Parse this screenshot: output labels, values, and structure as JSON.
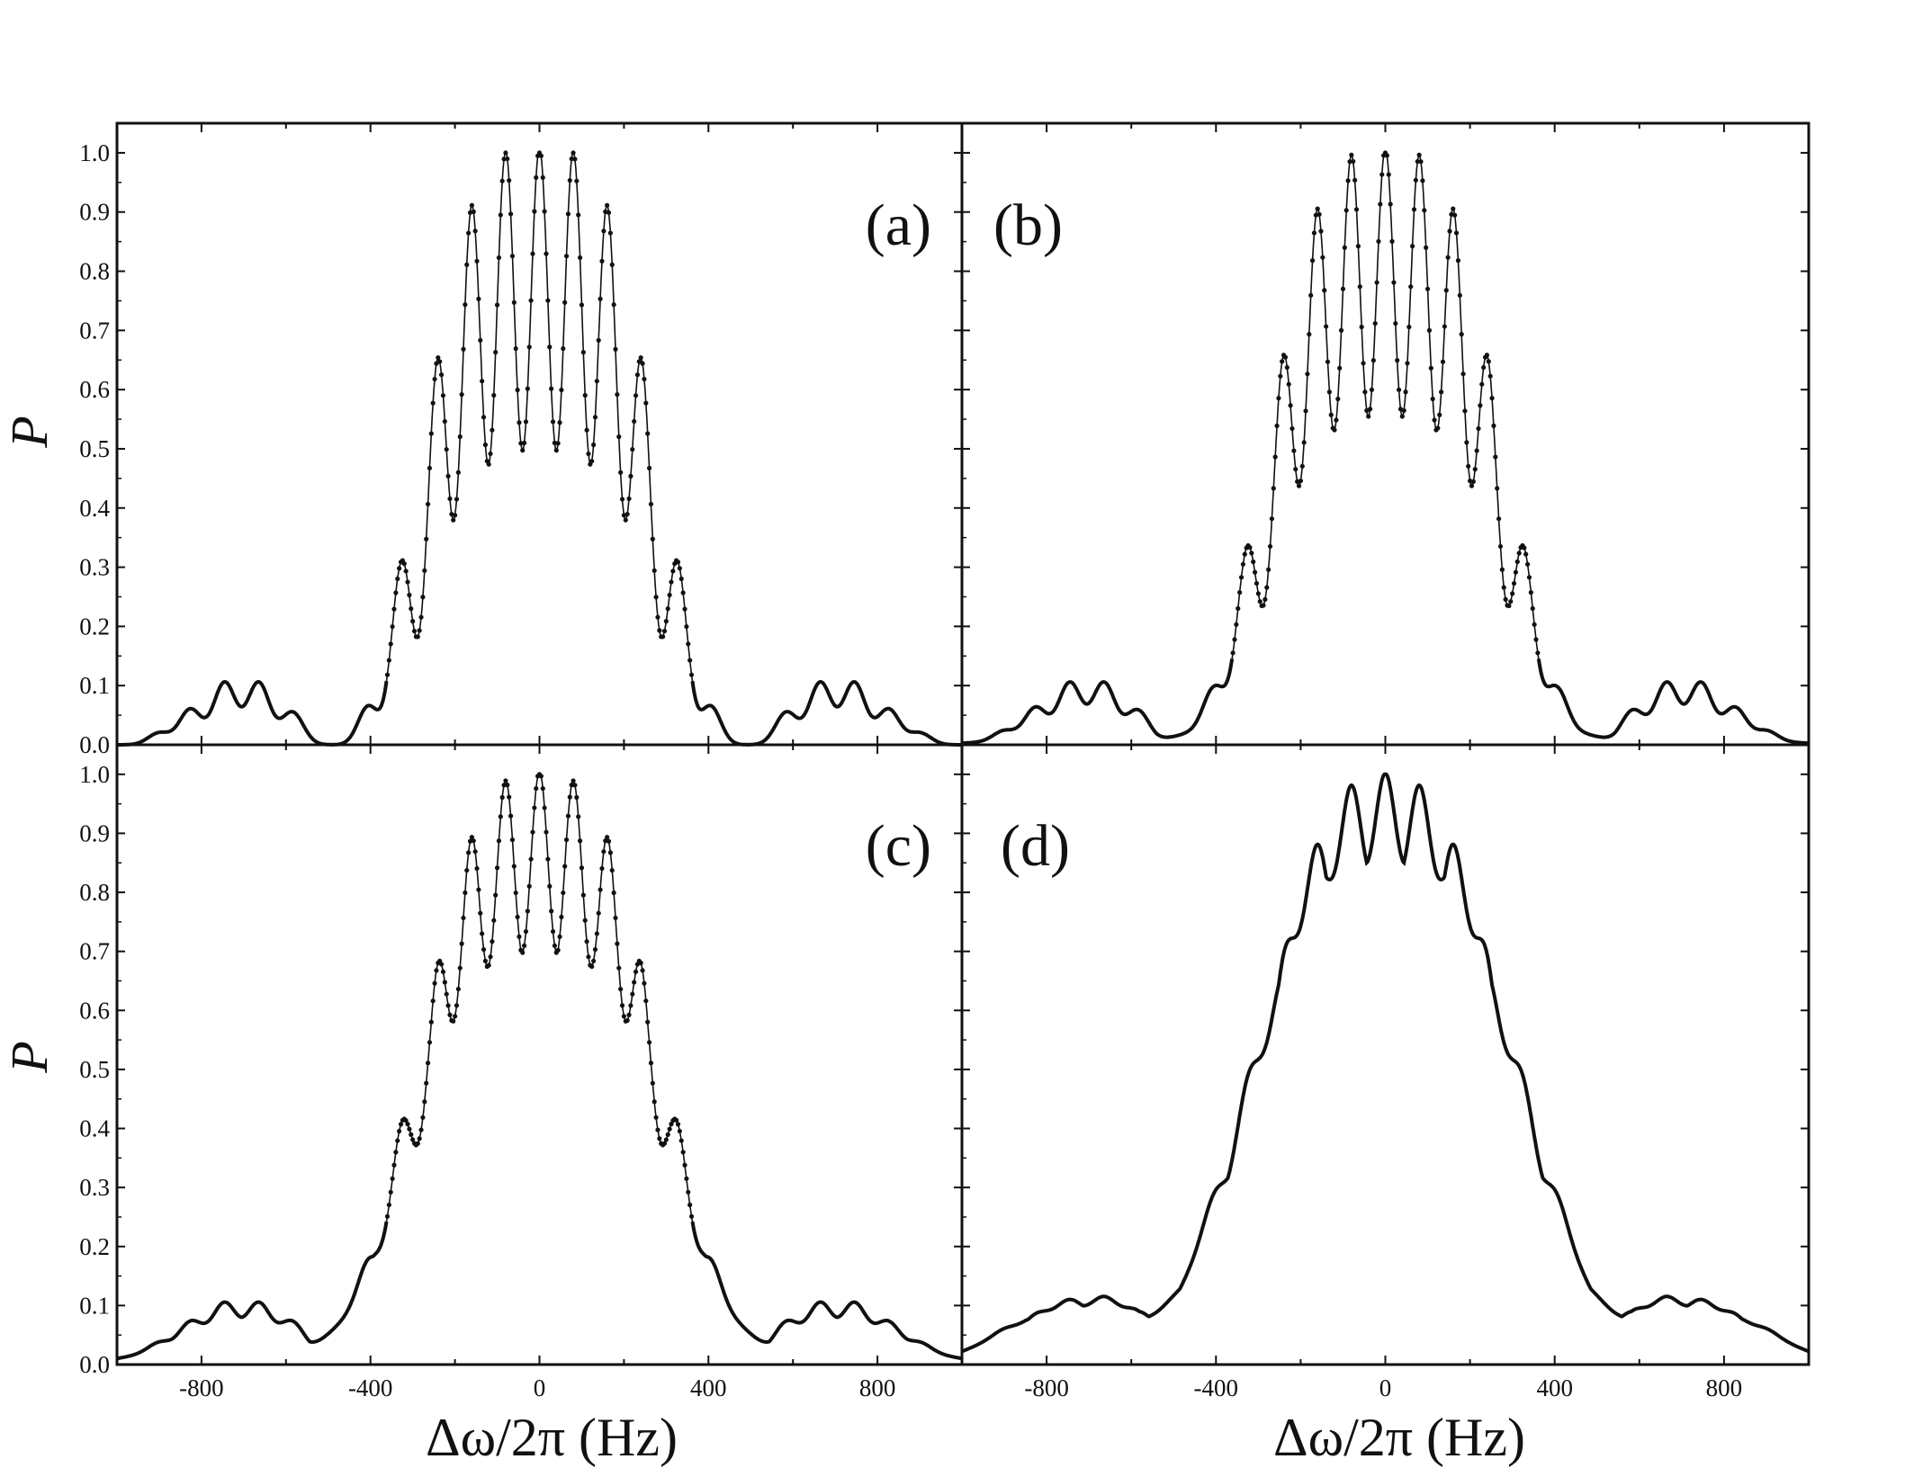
{
  "chart_data": [
    {
      "type": "line",
      "panel_label": "(a)",
      "ylabel": "P",
      "xlabel": "",
      "xlim": [
        -1000,
        1000
      ],
      "ylim": [
        0,
        1.05
      ],
      "x_ticks": [
        "-800",
        "-400",
        "0",
        "400",
        "800"
      ],
      "y_ticks": [
        "0.0",
        "0.1",
        "0.2",
        "0.3",
        "0.4",
        "0.5",
        "0.6",
        "0.7",
        "0.8",
        "0.9",
        "1.0"
      ],
      "peaks": [
        {
          "x": -900,
          "y": 0.02
        },
        {
          "x": -826,
          "y": 0.06
        },
        {
          "x": -745,
          "y": 0.105
        },
        {
          "x": -665,
          "y": 0.105
        },
        {
          "x": -585,
          "y": 0.055
        },
        {
          "x": -405,
          "y": 0.065
        },
        {
          "x": -325,
          "y": 0.31
        },
        {
          "x": -240,
          "y": 0.65
        },
        {
          "x": -160,
          "y": 0.905
        },
        {
          "x": -80,
          "y": 0.995
        },
        {
          "x": 0,
          "y": 1.0
        },
        {
          "x": 80,
          "y": 0.995
        },
        {
          "x": 160,
          "y": 0.905
        },
        {
          "x": 240,
          "y": 0.65
        },
        {
          "x": 325,
          "y": 0.31
        },
        {
          "x": 405,
          "y": 0.065
        },
        {
          "x": 585,
          "y": 0.055
        },
        {
          "x": 665,
          "y": 0.105
        },
        {
          "x": 745,
          "y": 0.105
        },
        {
          "x": 826,
          "y": 0.06
        },
        {
          "x": 900,
          "y": 0.02
        }
      ],
      "trough_floor": 0.0
    },
    {
      "type": "line",
      "panel_label": "(b)",
      "ylabel": "",
      "xlabel": "",
      "xlim": [
        -1000,
        1000
      ],
      "ylim": [
        0,
        1.05
      ],
      "x_ticks": [],
      "y_ticks": [],
      "peaks": [
        {
          "x": -900,
          "y": 0.02
        },
        {
          "x": -826,
          "y": 0.06
        },
        {
          "x": -745,
          "y": 0.105
        },
        {
          "x": -665,
          "y": 0.105
        },
        {
          "x": -585,
          "y": 0.055
        },
        {
          "x": -405,
          "y": 0.075
        },
        {
          "x": -325,
          "y": 0.31
        },
        {
          "x": -240,
          "y": 0.645
        },
        {
          "x": -160,
          "y": 0.9
        },
        {
          "x": -80,
          "y": 0.99
        },
        {
          "x": 0,
          "y": 1.0
        },
        {
          "x": 80,
          "y": 0.99
        },
        {
          "x": 160,
          "y": 0.9
        },
        {
          "x": 240,
          "y": 0.645
        },
        {
          "x": 325,
          "y": 0.31
        },
        {
          "x": 405,
          "y": 0.075
        },
        {
          "x": 585,
          "y": 0.055
        },
        {
          "x": 665,
          "y": 0.105
        },
        {
          "x": 745,
          "y": 0.105
        },
        {
          "x": 826,
          "y": 0.06
        },
        {
          "x": 900,
          "y": 0.02
        }
      ],
      "trough_floor": 0.13
    },
    {
      "type": "line",
      "panel_label": "(c)",
      "ylabel": "P",
      "xlabel": "Δω/2π (Hz)",
      "xlim": [
        -1000,
        1000
      ],
      "ylim": [
        0,
        1.05
      ],
      "x_ticks": [
        "-800",
        "-400",
        "0",
        "400",
        "800"
      ],
      "y_ticks": [
        "0.0",
        "0.1",
        "0.2",
        "0.3",
        "0.4",
        "0.5",
        "0.6",
        "0.7",
        "0.8",
        "0.9",
        "1.0"
      ],
      "peaks": [
        {
          "x": -900,
          "y": 0.025
        },
        {
          "x": -826,
          "y": 0.065
        },
        {
          "x": -745,
          "y": 0.105
        },
        {
          "x": -665,
          "y": 0.105
        },
        {
          "x": -585,
          "y": 0.065
        },
        {
          "x": -405,
          "y": 0.105
        },
        {
          "x": -325,
          "y": 0.335
        },
        {
          "x": -240,
          "y": 0.65
        },
        {
          "x": -160,
          "y": 0.89
        },
        {
          "x": -80,
          "y": 0.985
        },
        {
          "x": 0,
          "y": 1.0
        },
        {
          "x": 80,
          "y": 0.985
        },
        {
          "x": 160,
          "y": 0.89
        },
        {
          "x": 240,
          "y": 0.65
        },
        {
          "x": 325,
          "y": 0.335
        },
        {
          "x": 405,
          "y": 0.105
        },
        {
          "x": 585,
          "y": 0.065
        },
        {
          "x": 665,
          "y": 0.105
        },
        {
          "x": 745,
          "y": 0.105
        },
        {
          "x": 826,
          "y": 0.065
        },
        {
          "x": 900,
          "y": 0.025
        }
      ],
      "trough_floor": 0.45
    },
    {
      "type": "line",
      "panel_label": "(d)",
      "ylabel": "",
      "xlabel": "Δω/2π (Hz)",
      "xlim": [
        -1000,
        1000
      ],
      "ylim": [
        0,
        1.05
      ],
      "x_ticks": [
        "-800",
        "-400",
        "0",
        "400",
        "800"
      ],
      "y_ticks": [],
      "peaks": [
        {
          "x": -900,
          "y": 0.04
        },
        {
          "x": -826,
          "y": 0.08
        },
        {
          "x": -745,
          "y": 0.11
        },
        {
          "x": -665,
          "y": 0.115
        },
        {
          "x": -585,
          "y": 0.09
        },
        {
          "x": -405,
          "y": 0.2
        },
        {
          "x": -325,
          "y": 0.39
        },
        {
          "x": -240,
          "y": 0.66
        },
        {
          "x": -160,
          "y": 0.88
        },
        {
          "x": -80,
          "y": 0.98
        },
        {
          "x": 0,
          "y": 1.0
        },
        {
          "x": 80,
          "y": 0.98
        },
        {
          "x": 160,
          "y": 0.88
        },
        {
          "x": 240,
          "y": 0.66
        },
        {
          "x": 325,
          "y": 0.39
        },
        {
          "x": 405,
          "y": 0.2
        },
        {
          "x": 585,
          "y": 0.09
        },
        {
          "x": 665,
          "y": 0.115
        },
        {
          "x": 745,
          "y": 0.11
        },
        {
          "x": 826,
          "y": 0.08
        },
        {
          "x": 900,
          "y": 0.04
        }
      ],
      "trough_floor": 0.8
    }
  ]
}
